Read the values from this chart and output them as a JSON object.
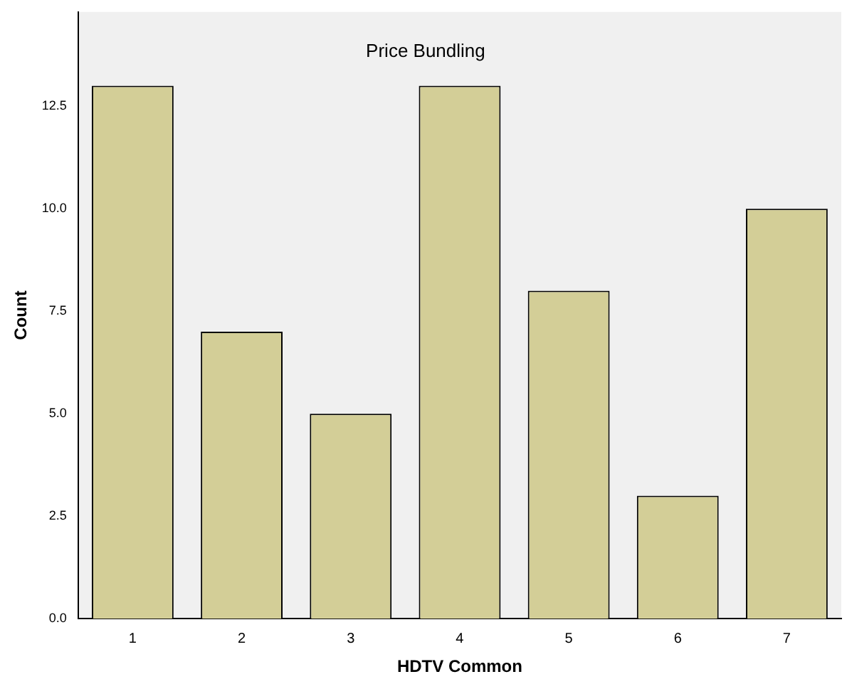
{
  "chart_data": {
    "type": "bar",
    "title": "Price Bundling",
    "xlabel": "HDTV Common",
    "ylabel": "Count",
    "categories": [
      "1",
      "2",
      "3",
      "4",
      "5",
      "6",
      "7"
    ],
    "values": [
      13,
      7,
      5,
      13,
      8,
      3,
      10
    ],
    "color": "#d3ce97",
    "ylim": [
      0,
      14.8
    ],
    "yticks": [
      {
        "value": 0,
        "label": "0.0"
      },
      {
        "value": 2.5,
        "label": "2.5"
      },
      {
        "value": 5,
        "label": "5.0"
      },
      {
        "value": 7.5,
        "label": "7.5"
      },
      {
        "value": 10,
        "label": "10.0"
      },
      {
        "value": 12.5,
        "label": "12.5"
      }
    ],
    "grid": false,
    "legend": false
  }
}
